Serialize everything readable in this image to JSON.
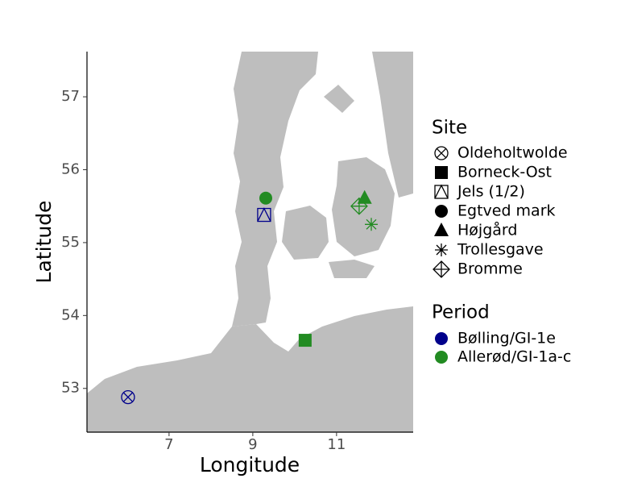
{
  "chart_data": {
    "type": "scatter",
    "xlabel": "Longitude",
    "ylabel": "Latitude",
    "xlim": [
      5.04,
      12.83
    ],
    "ylim": [
      52.4,
      57.62
    ],
    "xticks": [
      7,
      9,
      11
    ],
    "yticks": [
      53,
      54,
      55,
      56,
      57
    ],
    "legend_site_title": "Site",
    "legend_period_title": "Period",
    "periods": [
      {
        "name": "Bølling/GI-1e",
        "color": "#00008b"
      },
      {
        "name": "Allerød/GI-1a-c",
        "color": "#228b22"
      }
    ],
    "series": [
      {
        "name": "Oldeholtwolde",
        "marker": "circle-cross",
        "color": "#00008b",
        "x": [
          6.02
        ],
        "values": [
          52.88
        ]
      },
      {
        "name": "Borneck-Ost",
        "marker": "square",
        "color": "#228b22",
        "x": [
          10.25
        ],
        "values": [
          53.66
        ]
      },
      {
        "name": "Jels (1/2)",
        "marker": "square-slash",
        "color": "#00008b",
        "x": [
          9.27
        ],
        "values": [
          55.38
        ]
      },
      {
        "name": "Egtved mark",
        "marker": "circle",
        "color": "#228b22",
        "x": [
          9.31
        ],
        "values": [
          55.61
        ]
      },
      {
        "name": "Højgård",
        "marker": "triangle",
        "color": "#228b22",
        "x": [
          11.67
        ],
        "values": [
          55.61
        ]
      },
      {
        "name": "Trollesgave",
        "marker": "asterisk",
        "color": "#228b22",
        "x": [
          11.83
        ],
        "values": [
          55.25
        ]
      },
      {
        "name": "Bromme",
        "marker": "diamond-plus",
        "color": "#228b22",
        "x": [
          11.54
        ],
        "values": [
          55.5
        ]
      }
    ]
  }
}
